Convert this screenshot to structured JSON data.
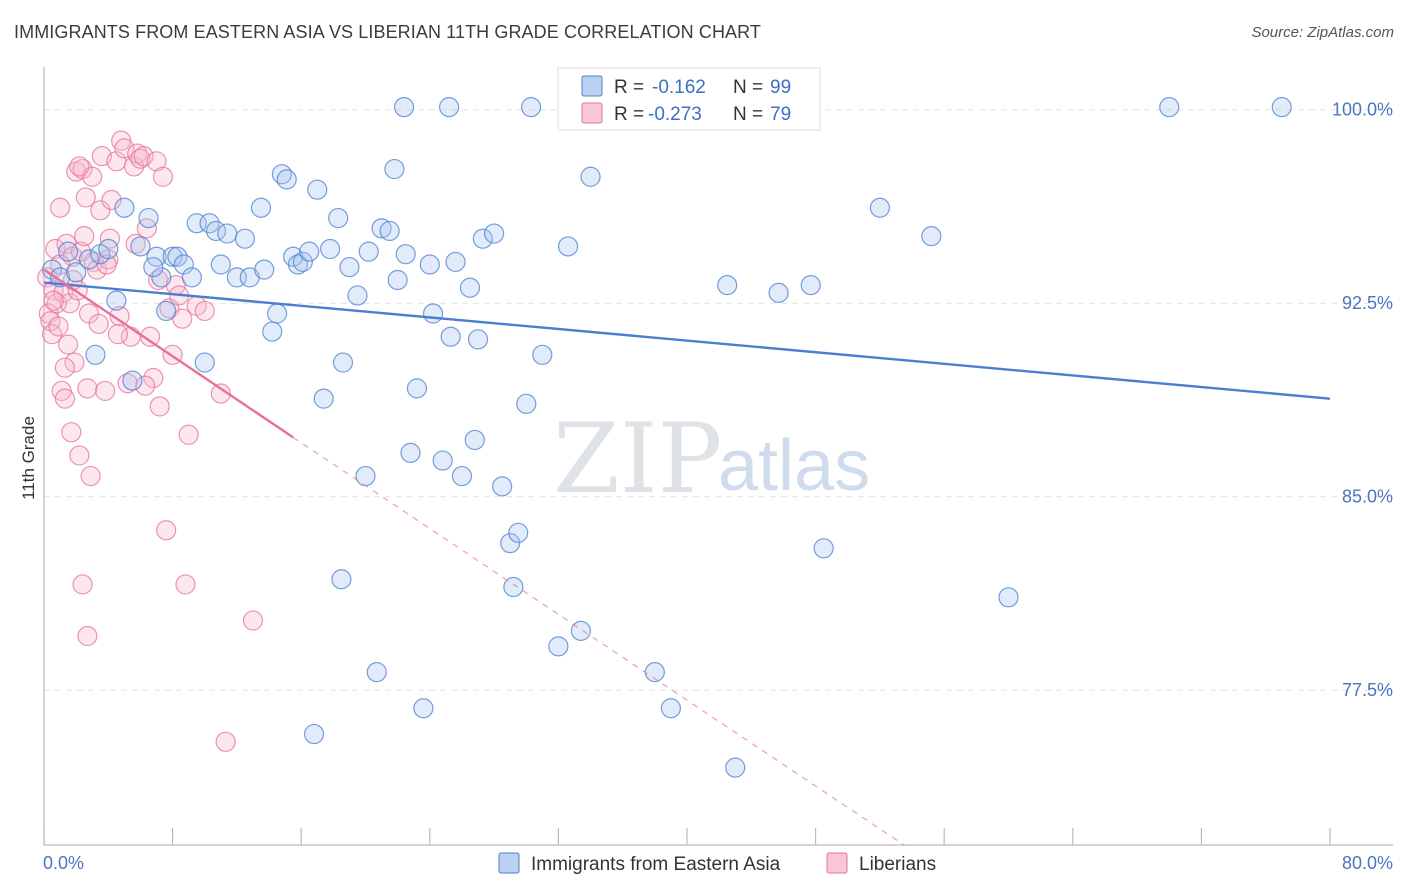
{
  "title": "IMMIGRANTS FROM EASTERN ASIA VS LIBERIAN 11TH GRADE CORRELATION CHART",
  "source": "Source: ZipAtlas.com",
  "watermark": {
    "zip": "ZIP",
    "atlas": "atlas"
  },
  "colors": {
    "blue": "#4a7fd0",
    "blue_fill": "#a9c6ef",
    "pink": "#e8709a",
    "pink_fill": "#f6b9cd"
  },
  "chart_data": {
    "type": "scatter",
    "title": "IMMIGRANTS FROM EASTERN ASIA VS LIBERIAN 11TH GRADE CORRELATION CHART",
    "xlabel": "",
    "ylabel": "11th Grade",
    "xlim": [
      0,
      80
    ],
    "ylim": [
      71.5,
      101.5
    ],
    "x_tick_labels": [
      "0.0%",
      "80.0%"
    ],
    "y_ticks": [
      77.5,
      85.0,
      92.5,
      100.0
    ],
    "y_tick_labels": [
      "77.5%",
      "85.0%",
      "92.5%",
      "100.0%"
    ],
    "grid": true,
    "legend": {
      "position": "top-center",
      "entries": [
        {
          "r_label": "R =",
          "r_value": "-0.162",
          "n_label": "N =",
          "n_value": "99"
        },
        {
          "r_label": "R =",
          "r_value": "-0.273",
          "n_label": "N =",
          "n_value": "79"
        }
      ]
    },
    "series": [
      {
        "name": "Immigrants from Eastern Asia",
        "color": "#4a7fd0",
        "trend": {
          "x": [
            0,
            80
          ],
          "y": [
            93.3,
            88.8
          ]
        },
        "points": [
          [
            0.5,
            93.8
          ],
          [
            1,
            93.5
          ],
          [
            1.5,
            94.5
          ],
          [
            2,
            93.7
          ],
          [
            2.8,
            94.2
          ],
          [
            3.5,
            94.4
          ],
          [
            4,
            94.6
          ],
          [
            4.5,
            92.6
          ],
          [
            5,
            96.2
          ],
          [
            5.5,
            89.5
          ],
          [
            6,
            94.7
          ],
          [
            6.5,
            95.8
          ],
          [
            7,
            94.3
          ],
          [
            7.3,
            93.5
          ],
          [
            7.6,
            92.2
          ],
          [
            8,
            94.3
          ],
          [
            8.3,
            94.3
          ],
          [
            8.7,
            94.0
          ],
          [
            9.2,
            93.5
          ],
          [
            9.5,
            95.6
          ],
          [
            10,
            90.2
          ],
          [
            10.3,
            95.6
          ],
          [
            10.7,
            95.3
          ],
          [
            11,
            94.0
          ],
          [
            11.4,
            95.2
          ],
          [
            12,
            93.5
          ],
          [
            12.5,
            95.0
          ],
          [
            12.8,
            93.5
          ],
          [
            13.5,
            96.2
          ],
          [
            13.7,
            93.8
          ],
          [
            14.2,
            91.4
          ],
          [
            14.5,
            92.1
          ],
          [
            14.8,
            97.5
          ],
          [
            15.1,
            97.3
          ],
          [
            15.5,
            94.3
          ],
          [
            15.8,
            94.0
          ],
          [
            16.1,
            94.1
          ],
          [
            16.5,
            94.5
          ],
          [
            17,
            96.9
          ],
          [
            17.4,
            88.8
          ],
          [
            17.8,
            94.6
          ],
          [
            18.3,
            95.8
          ],
          [
            18.6,
            90.2
          ],
          [
            19,
            93.9
          ],
          [
            19.5,
            92.8
          ],
          [
            20,
            85.8
          ],
          [
            20.2,
            94.5
          ],
          [
            21,
            95.4
          ],
          [
            21.5,
            95.3
          ],
          [
            21.8,
            97.7
          ],
          [
            22,
            93.4
          ],
          [
            22.5,
            94.4
          ],
          [
            22.8,
            86.7
          ],
          [
            23.2,
            89.2
          ],
          [
            24,
            94.0
          ],
          [
            24.2,
            92.1
          ],
          [
            24.8,
            86.4
          ],
          [
            25.3,
            91.2
          ],
          [
            25.6,
            94.1
          ],
          [
            26,
            85.8
          ],
          [
            26.5,
            93.1
          ],
          [
            26.8,
            87.2
          ],
          [
            27,
            91.1
          ],
          [
            27.3,
            95.0
          ],
          [
            28,
            95.2
          ],
          [
            28.5,
            85.4
          ],
          [
            29,
            83.2
          ],
          [
            29.2,
            81.5
          ],
          [
            29.5,
            83.6
          ],
          [
            30,
            88.6
          ],
          [
            31,
            90.5
          ],
          [
            32,
            79.2
          ],
          [
            32.6,
            94.7
          ],
          [
            33.4,
            79.8
          ],
          [
            34,
            97.4
          ],
          [
            38,
            78.2
          ],
          [
            39,
            76.8
          ],
          [
            42.5,
            93.2
          ],
          [
            43,
            74.5
          ],
          [
            48.5,
            83.0
          ],
          [
            52,
            96.2
          ],
          [
            60,
            81.1
          ],
          [
            70,
            100.1
          ],
          [
            77,
            100.1
          ],
          [
            18.5,
            81.8
          ],
          [
            16.8,
            75.8
          ],
          [
            20.7,
            78.2
          ],
          [
            23.6,
            76.8
          ],
          [
            33.8,
            100.1
          ],
          [
            37.2,
            100.1
          ],
          [
            55.2,
            95.1
          ],
          [
            47.7,
            93.2
          ],
          [
            45.7,
            92.9
          ],
          [
            36.4,
            100.1
          ],
          [
            30.3,
            100.1
          ],
          [
            25.2,
            100.1
          ],
          [
            22.4,
            100.1
          ],
          [
            6.8,
            93.9
          ],
          [
            3.2,
            90.5
          ]
        ]
      },
      {
        "name": "Liberians",
        "color": "#e8709a",
        "trend": {
          "x": [
            0,
            15.5
          ],
          "y": [
            93.8,
            87.3
          ],
          "dashed_to": {
            "x": 53.5,
            "y": 71.5
          }
        },
        "points": [
          [
            0.2,
            93.5
          ],
          [
            0.3,
            92.1
          ],
          [
            0.4,
            91.8
          ],
          [
            0.5,
            91.3
          ],
          [
            0.6,
            93.0
          ],
          [
            0.7,
            94.6
          ],
          [
            0.8,
            92.5
          ],
          [
            0.9,
            91.6
          ],
          [
            1,
            96.2
          ],
          [
            1.1,
            89.1
          ],
          [
            1.2,
            92.9
          ],
          [
            1.3,
            88.8
          ],
          [
            1.4,
            94.8
          ],
          [
            1.5,
            90.9
          ],
          [
            1.6,
            92.5
          ],
          [
            1.7,
            87.5
          ],
          [
            1.8,
            94.3
          ],
          [
            1.9,
            90.2
          ],
          [
            2,
            97.6
          ],
          [
            2.1,
            93.0
          ],
          [
            2.2,
            86.6
          ],
          [
            2.3,
            94.5
          ],
          [
            2.4,
            97.7
          ],
          [
            2.5,
            95.1
          ],
          [
            2.6,
            96.6
          ],
          [
            2.7,
            89.2
          ],
          [
            2.8,
            92.1
          ],
          [
            2.9,
            85.8
          ],
          [
            3,
            97.4
          ],
          [
            3.1,
            94.1
          ],
          [
            3.3,
            93.8
          ],
          [
            3.5,
            96.1
          ],
          [
            3.6,
            98.2
          ],
          [
            3.8,
            89.1
          ],
          [
            4,
            94.2
          ],
          [
            4.2,
            96.5
          ],
          [
            4.5,
            98.0
          ],
          [
            4.7,
            92.0
          ],
          [
            4.8,
            98.8
          ],
          [
            5,
            98.5
          ],
          [
            5.2,
            89.4
          ],
          [
            5.4,
            91.2
          ],
          [
            5.6,
            97.8
          ],
          [
            5.8,
            98.3
          ],
          [
            6,
            98.1
          ],
          [
            6.2,
            98.2
          ],
          [
            6.4,
            95.4
          ],
          [
            6.6,
            91.2
          ],
          [
            6.8,
            89.6
          ],
          [
            7,
            98.0
          ],
          [
            7.2,
            88.5
          ],
          [
            7.4,
            97.4
          ],
          [
            7.6,
            83.7
          ],
          [
            7.8,
            92.3
          ],
          [
            8,
            90.5
          ],
          [
            8.2,
            93.2
          ],
          [
            8.4,
            92.8
          ],
          [
            8.6,
            91.9
          ],
          [
            8.8,
            81.6
          ],
          [
            9.0,
            87.4
          ],
          [
            9.5,
            92.4
          ],
          [
            10,
            92.2
          ],
          [
            11,
            89.0
          ],
          [
            11.3,
            75.5
          ],
          [
            13,
            80.2
          ],
          [
            2.4,
            81.6
          ],
          [
            2.7,
            79.6
          ],
          [
            4.1,
            95.0
          ],
          [
            3.9,
            94.0
          ],
          [
            1.3,
            90.0
          ],
          [
            1.0,
            94.0
          ],
          [
            0.6,
            92.6
          ],
          [
            5.7,
            94.8
          ],
          [
            6.3,
            89.3
          ],
          [
            7.1,
            93.4
          ],
          [
            2.2,
            97.8
          ],
          [
            3.4,
            91.7
          ],
          [
            4.6,
            91.3
          ],
          [
            1.8,
            93.4
          ]
        ]
      }
    ]
  },
  "bottom_legend": [
    {
      "label": "Immigrants from Eastern Asia"
    },
    {
      "label": "Liberians"
    }
  ]
}
